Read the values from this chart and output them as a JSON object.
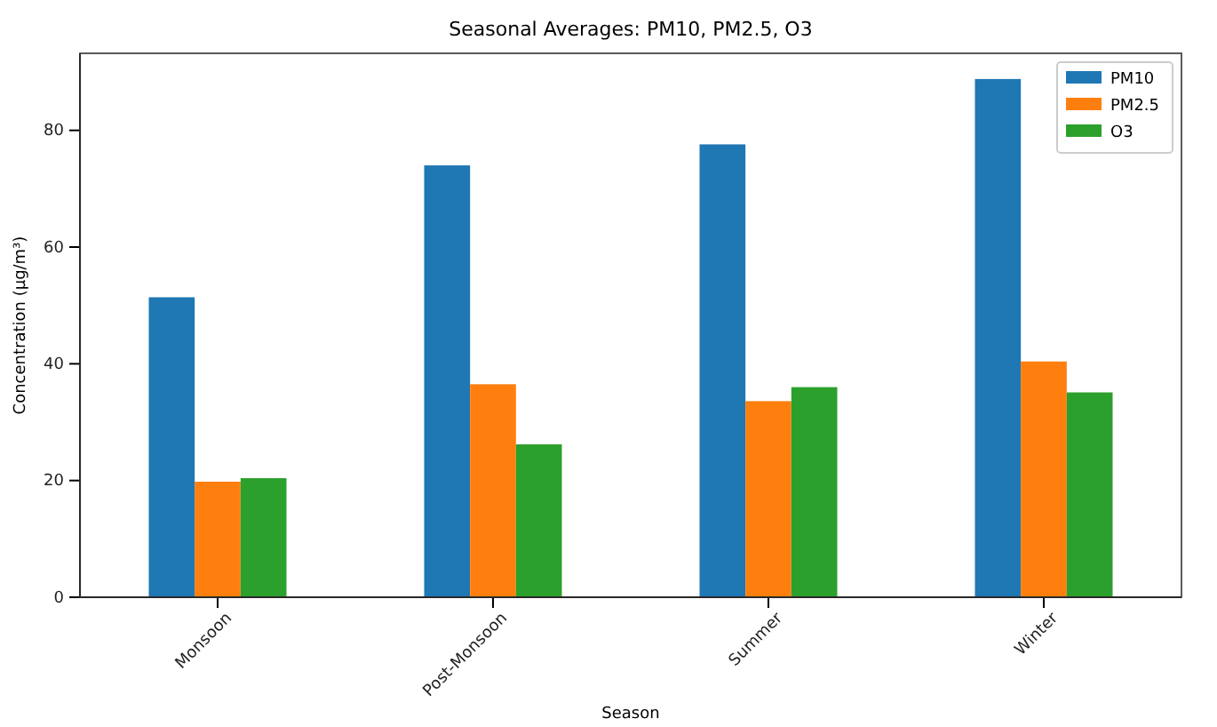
{
  "chart_data": {
    "type": "bar",
    "title": "Seasonal Averages: PM10, PM2.5, O3",
    "xlabel": "Season",
    "ylabel": "Concentration (µg/m³)",
    "categories": [
      "Monsoon",
      "Post-Monsoon",
      "Summer",
      "Winter"
    ],
    "series": [
      {
        "name": "PM10",
        "color": "#1f77b4",
        "values": [
          51.4,
          74.0,
          77.6,
          88.8
        ]
      },
      {
        "name": "PM2.5",
        "color": "#ff7f0e",
        "values": [
          19.8,
          36.5,
          33.6,
          40.4
        ]
      },
      {
        "name": "O3",
        "color": "#2ca02c",
        "values": [
          20.4,
          26.2,
          36.0,
          35.1
        ]
      }
    ],
    "ylim": [
      0,
      93.2
    ],
    "yticks": [
      0,
      20,
      40,
      60,
      80
    ],
    "legend": "top right"
  }
}
